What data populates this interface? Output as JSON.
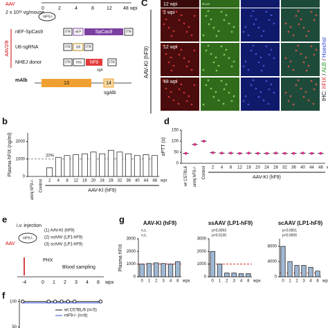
{
  "panels": {
    "a": {
      "aav": "AAV",
      "dose": "2 x 10¹² vg/mouse",
      "mouse": "mF9-/-",
      "timeline": [
        "0",
        "2",
        "4",
        "8",
        "12",
        "48"
      ],
      "unit": "wpi",
      "serotype": "AAV2/8",
      "constructs": [
        "nEF-SpCas9",
        "U6-sgRNA",
        "NHEJ donor"
      ],
      "elements": {
        "itr": "ITR",
        "nef": "nEF",
        "spcas9": "SpCas9",
        "u6": "U6",
        "ires": "ires",
        "hf9": "hF9",
        "sga": "sgA"
      },
      "gene": "mAlb",
      "exons": [
        "13",
        "14"
      ],
      "guide": "sgAlb"
    },
    "b": {
      "label": "b"
    },
    "c": {
      "control": "C",
      "rows": [
        "12 wpi",
        "2 wpi",
        "12 wpi",
        "48 wpi"
      ],
      "scale": "50 μm",
      "group": "AAV-KI (hF9)",
      "stain": [
        "IHC: ",
        "hFIX",
        " / ",
        "ALB",
        " / ",
        "Hoechst"
      ]
    },
    "d": {
      "label": "d"
    },
    "e": {
      "label": "e",
      "injection": "i.v. injection",
      "aav": "AAV",
      "mouse": "mF9-/-",
      "groups": [
        "(1) AAV-KI (hF9)",
        "(2) ssAAV (LP1-hF9)",
        "(3) scAAV (LP1-hF9)"
      ],
      "phx": "PHX",
      "sampling": "Blood sampling",
      "timeline": [
        "-4",
        "0",
        "1",
        "2",
        "3",
        "4",
        "8"
      ],
      "unit": "wpx"
    },
    "f": {
      "label": "f"
    },
    "g": {
      "label": "g"
    }
  },
  "chart_data": [
    {
      "type": "bar",
      "ylabel": "Plasma hFIX (ng/ml)",
      "categories": [
        "uninj hF9-/-",
        "Control",
        "2",
        "4",
        "8",
        "12",
        "16",
        "20",
        "24",
        "28",
        "32",
        "36",
        "40",
        "44",
        "48"
      ],
      "values": [
        0,
        0,
        500,
        1100,
        1200,
        1250,
        1300,
        1400,
        1300,
        1500,
        1400,
        1300,
        1200,
        1250,
        1200
      ],
      "color": "#ffffff",
      "ylim": [
        0,
        2500
      ],
      "yticks": [
        0,
        1000,
        2000
      ],
      "xlabel": "wpi",
      "group_label": "AAV-KI (hF9)",
      "reference_line": 1000,
      "reference_color": "#888888",
      "annotations": [
        "20%"
      ]
    },
    {
      "type": "dot",
      "ylabel": "aPTT (s)",
      "categories": [
        "wt C57BL6",
        "uninj hF9-/-",
        "Control",
        "2",
        "4",
        "8",
        "12",
        "16",
        "20",
        "24",
        "28",
        "32",
        "36",
        "40",
        "44",
        "48"
      ],
      "values": [
        45,
        85,
        100,
        48,
        46,
        46,
        45,
        46,
        45,
        45,
        46,
        45,
        45,
        46,
        45,
        45
      ],
      "color": "#d6338a",
      "ylim": [
        0,
        150
      ],
      "yticks": [
        0,
        50,
        100,
        150
      ],
      "xlabel": "wpi",
      "group_label": "AAV-KI (hF9)"
    },
    {
      "type": "line",
      "x": [
        -4,
        0,
        1,
        2,
        3,
        4,
        8
      ],
      "xlim": [
        -4.5,
        8.5
      ],
      "ylim": [
        40,
        105
      ],
      "yticks": [
        50,
        100
      ],
      "series": [
        {
          "name": "wt C57BL/6 (n=5)",
          "color": "#111111",
          "values": [
            100,
            100,
            100,
            100,
            100,
            100,
            100
          ]
        },
        {
          "name": "mF9-/- (n=8)",
          "color": "#2b4fd6",
          "values": [
            100,
            100,
            100,
            100,
            100,
            100,
            100
          ]
        }
      ]
    },
    {
      "type": "bar",
      "title": "AAV-KI (hF9)",
      "ylabel": "Plasma hFIX",
      "categories": [
        "0",
        "1",
        "2",
        "3",
        "4",
        "8"
      ],
      "values": [
        1000,
        1050,
        1100,
        1050,
        1000,
        1200
      ],
      "color": "#9fb8d3",
      "ylim": [
        0,
        3000
      ],
      "yticks": [
        0,
        1000,
        2000,
        3000
      ],
      "xlabel": "wpx",
      "reference_line": 1000,
      "reference_color": "#d62828",
      "annotations": [
        "n.s.",
        "n.s."
      ]
    },
    {
      "type": "bar",
      "title": "ssAAV (LP1-hF9)",
      "categories": [
        "0",
        "1",
        "2",
        "3",
        "4",
        "8"
      ],
      "values": [
        2000,
        1000,
        300,
        300,
        250,
        250
      ],
      "color": "#9fb8d3",
      "ylim": [
        0,
        3000
      ],
      "yticks": [
        0,
        1000,
        2000,
        3000
      ],
      "xlabel": "wpx",
      "reference_line": 1000,
      "reference_color": "#d62828",
      "annotations": [
        "p=0.0093",
        "p=0.0130"
      ]
    },
    {
      "type": "bar",
      "title": "scAAV (LP1-hF9)",
      "categories": [
        "0",
        "1",
        "2",
        "3",
        "4",
        "8"
      ],
      "values": [
        8000,
        4000,
        3000,
        3000,
        2500,
        1500
      ],
      "color": "#9fb8d3",
      "ylim": [
        0,
        10000
      ],
      "yticks": [
        0,
        4000,
        8000
      ],
      "xlabel": "wpx",
      "reference_line": 1000,
      "reference_color": "#d62828",
      "annotations": [
        "p<0.0001",
        "p=0.0006"
      ]
    }
  ]
}
